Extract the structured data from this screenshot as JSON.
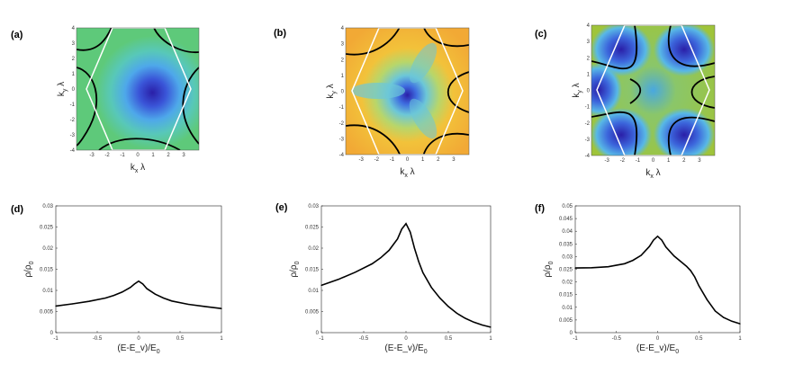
{
  "figure": {
    "panel_labels": [
      "(a)",
      "(b)",
      "(c)",
      "(d)",
      "(e)",
      "(f)"
    ]
  },
  "chart_data": [
    {
      "type": "heatmap",
      "panel": "(a)",
      "xlabel": "k_x λ",
      "ylabel": "k_y λ",
      "xlim": [
        -4,
        4
      ],
      "ylim": [
        -4,
        4
      ],
      "x_ticks": [
        -3,
        -2,
        -1,
        0,
        1,
        2,
        3
      ],
      "y_ticks": [
        4,
        3,
        2,
        1,
        0,
        -1,
        -2,
        -3,
        -4
      ],
      "colors": {
        "low": "#2a1fa8",
        "mid": "#5bb8e8",
        "high": "#5ec97a"
      },
      "overlay": "white hexagonal Brillouin zone with black Fermi contours"
    },
    {
      "type": "heatmap",
      "panel": "(b)",
      "xlabel": "k_x λ",
      "ylabel": "k_y λ",
      "xlim": [
        -4,
        4
      ],
      "ylim": [
        -4,
        4
      ],
      "x_ticks": [
        -3,
        -2,
        -1,
        0,
        1,
        2,
        3
      ],
      "y_ticks": [
        4,
        3,
        2,
        1,
        0,
        -1,
        -2,
        -3,
        -4
      ],
      "colors": {
        "low": "#2a1fa8",
        "mid": "#7fd0a0",
        "high": "#f2a935"
      },
      "overlay": "white hexagonal Brillouin zone with black Fermi contours"
    },
    {
      "type": "heatmap",
      "panel": "(c)",
      "xlabel": "k_x λ",
      "ylabel": "k_y λ",
      "xlim": [
        -4,
        4
      ],
      "ylim": [
        -4,
        4
      ],
      "x_ticks": [
        -3,
        -2,
        -1,
        0,
        1,
        2,
        3
      ],
      "y_ticks": [
        4,
        3,
        2,
        1,
        0,
        -1,
        -2,
        -3,
        -4
      ],
      "colors": {
        "low": "#2a1fa8",
        "mid": "#5ac0e0",
        "high": "#9fc43a"
      },
      "overlay": "white hexagonal Brillouin zone with black Fermi contours"
    },
    {
      "type": "line",
      "panel": "(d)",
      "xlabel": "(E-E_v)/E_0",
      "ylabel": "ρ/ρ_0",
      "xlim": [
        -1,
        1
      ],
      "ylim": [
        0,
        0.03
      ],
      "x_ticks": [
        "-1",
        "-0.5",
        "0",
        "0.5",
        "1"
      ],
      "y_ticks": [
        "0.03",
        "0.025",
        "0.02",
        "0.015",
        "0.01",
        "0.005",
        "0"
      ],
      "x": [
        -1,
        -0.8,
        -0.6,
        -0.4,
        -0.3,
        -0.2,
        -0.1,
        -0.05,
        0,
        0.05,
        0.1,
        0.2,
        0.3,
        0.4,
        0.6,
        0.8,
        1
      ],
      "values": [
        0.0063,
        0.0068,
        0.0074,
        0.0082,
        0.0088,
        0.0096,
        0.0107,
        0.0115,
        0.0122,
        0.0115,
        0.0104,
        0.0091,
        0.0082,
        0.0075,
        0.0067,
        0.0062,
        0.0057
      ]
    },
    {
      "type": "line",
      "panel": "(e)",
      "xlabel": "(E-E_v)/E_0",
      "ylabel": "ρ/ρ_0",
      "xlim": [
        -1,
        1
      ],
      "ylim": [
        0,
        0.03
      ],
      "x_ticks": [
        "-1",
        "-0.5",
        "0",
        "0.5",
        "1"
      ],
      "y_ticks": [
        "0.03",
        "0.025",
        "0.02",
        "0.015",
        "0.01",
        "0.005",
        "0"
      ],
      "x": [
        -1,
        -0.8,
        -0.6,
        -0.4,
        -0.3,
        -0.2,
        -0.1,
        -0.05,
        0,
        0.05,
        0.1,
        0.15,
        0.2,
        0.3,
        0.4,
        0.5,
        0.6,
        0.7,
        0.8,
        0.9,
        1
      ],
      "values": [
        0.0112,
        0.0126,
        0.0143,
        0.0163,
        0.0177,
        0.0195,
        0.0222,
        0.0245,
        0.0258,
        0.0238,
        0.02,
        0.0168,
        0.0142,
        0.0107,
        0.0082,
        0.0062,
        0.0046,
        0.0034,
        0.0025,
        0.0018,
        0.0013
      ]
    },
    {
      "type": "line",
      "panel": "(f)",
      "xlabel": "(E-E_v)/E_0",
      "ylabel": "ρ/ρ_0",
      "xlim": [
        -1,
        1
      ],
      "ylim": [
        0,
        0.05
      ],
      "x_ticks": [
        "-1",
        "-0.5",
        "0",
        "0.5",
        "1"
      ],
      "y_ticks": [
        "0.05",
        "0.045",
        "0.04",
        "0.035",
        "0.03",
        "0.025",
        "0.02",
        "0.015",
        "0.01",
        "0.005",
        "0"
      ],
      "x": [
        -1,
        -0.8,
        -0.6,
        -0.4,
        -0.3,
        -0.2,
        -0.1,
        -0.05,
        0,
        0.05,
        0.1,
        0.2,
        0.3,
        0.35,
        0.4,
        0.45,
        0.5,
        0.6,
        0.7,
        0.8,
        0.9,
        1
      ],
      "values": [
        0.0255,
        0.0256,
        0.026,
        0.0272,
        0.0285,
        0.0305,
        0.034,
        0.0365,
        0.038,
        0.0365,
        0.0338,
        0.0302,
        0.0275,
        0.0262,
        0.0245,
        0.022,
        0.0185,
        0.013,
        0.0085,
        0.006,
        0.0045,
        0.0035
      ]
    }
  ]
}
